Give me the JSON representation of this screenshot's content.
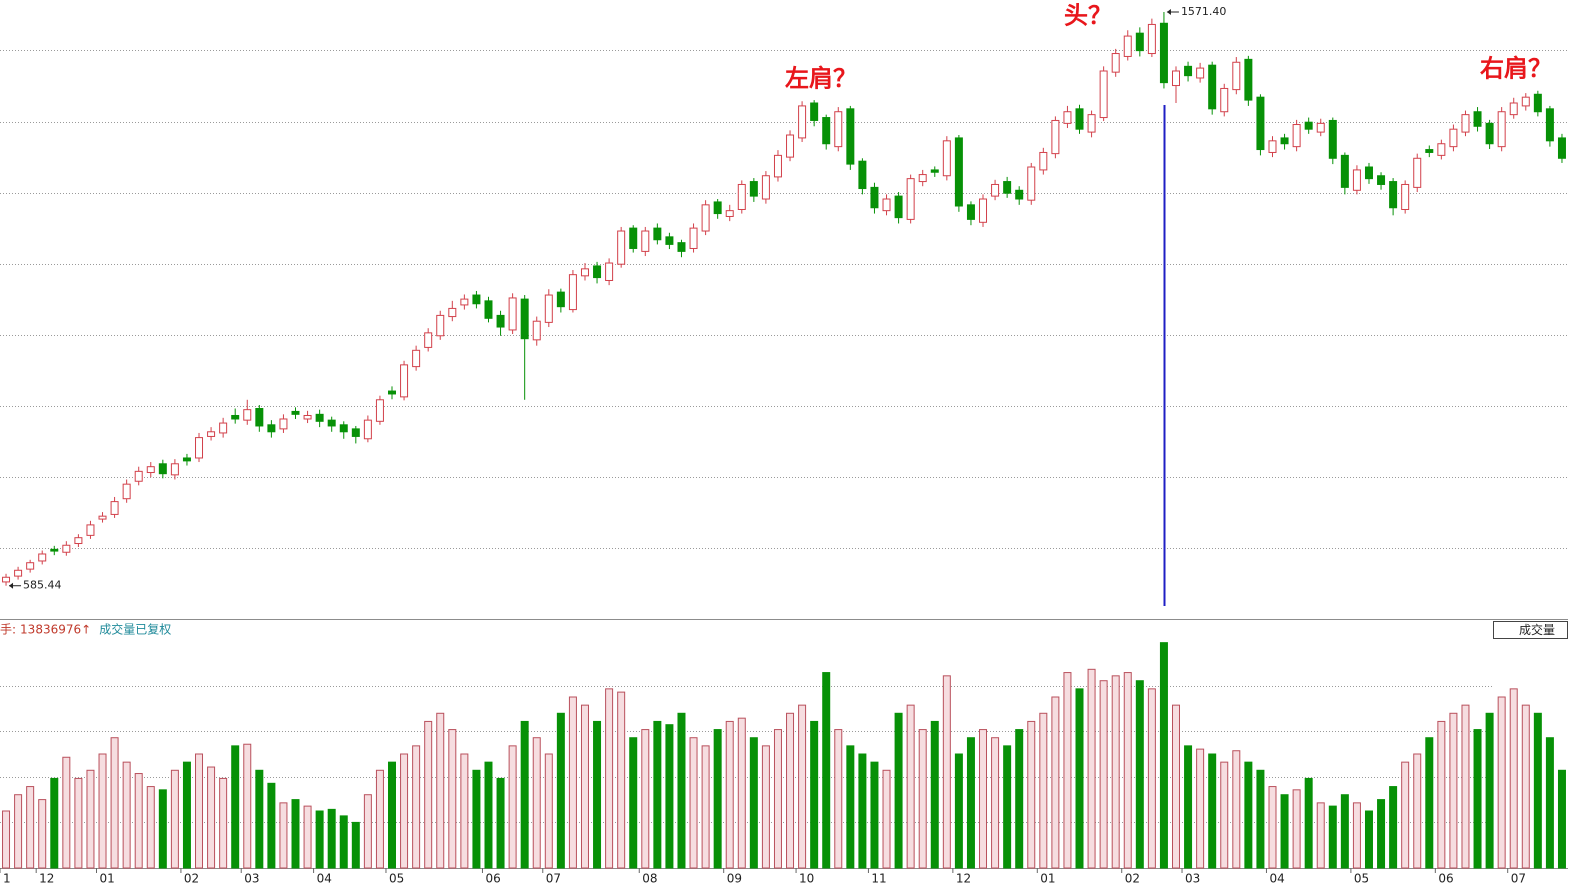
{
  "chart_data": {
    "type": "candlestick",
    "categories": [
      "1",
      null,
      null,
      "12",
      null,
      null,
      null,
      null,
      "01",
      null,
      null,
      null,
      null,
      null,
      null,
      "02",
      null,
      null,
      null,
      null,
      "03",
      null,
      null,
      null,
      null,
      null,
      "04",
      null,
      null,
      null,
      null,
      null,
      "05",
      null,
      null,
      null,
      null,
      null,
      null,
      null,
      "06",
      null,
      null,
      null,
      null,
      "07",
      null,
      null,
      null,
      null,
      null,
      null,
      null,
      "08",
      null,
      null,
      null,
      null,
      null,
      null,
      "09",
      null,
      null,
      null,
      null,
      null,
      "10",
      null,
      null,
      null,
      null,
      null,
      "11",
      null,
      null,
      null,
      null,
      null,
      null,
      "12",
      null,
      null,
      null,
      null,
      null,
      null,
      "01",
      null,
      null,
      null,
      null,
      null,
      null,
      "02",
      null,
      null,
      null,
      null,
      "03",
      null,
      null,
      null,
      null,
      null,
      null,
      "04",
      null,
      null,
      null,
      null,
      null,
      null,
      "05",
      null,
      null,
      null,
      null,
      null,
      null,
      "06",
      null,
      null,
      null,
      null,
      null,
      "07",
      null,
      null,
      null,
      null
    ],
    "candles": {
      "open": [
        592,
        602,
        614,
        628,
        648,
        643,
        658,
        672,
        700,
        708,
        735,
        765,
        780,
        795,
        776,
        805,
        805,
        842,
        848,
        878,
        870,
        890,
        862,
        855,
        885,
        872,
        880,
        870,
        862,
        855,
        838,
        868,
        920,
        910,
        962,
        995,
        1015,
        1048,
        1068,
        1085,
        1075,
        1050,
        1025,
        1078,
        1008,
        1038,
        1090,
        1060,
        1118,
        1135,
        1110,
        1138,
        1200,
        1160,
        1200,
        1185,
        1175,
        1165,
        1195,
        1245,
        1220,
        1232,
        1280,
        1250,
        1288,
        1322,
        1355,
        1415,
        1390,
        1340,
        1405,
        1315,
        1270,
        1230,
        1255,
        1215,
        1280,
        1300,
        1290,
        1355,
        1240,
        1210,
        1255,
        1280,
        1265,
        1248,
        1300,
        1328,
        1380,
        1405,
        1365,
        1390,
        1468,
        1495,
        1535,
        1500,
        1552,
        1445,
        1478,
        1458,
        1480,
        1400,
        1438,
        1490,
        1425,
        1330,
        1355,
        1340,
        1382,
        1365,
        1385,
        1325,
        1265,
        1305,
        1290,
        1280,
        1232,
        1270,
        1335,
        1325,
        1340,
        1365,
        1400,
        1380,
        1340,
        1395,
        1410,
        1430,
        1405,
        1355
      ],
      "high": [
        606,
        618,
        630,
        646,
        654,
        662,
        674,
        697,
        712,
        738,
        768,
        790,
        798,
        802,
        803,
        812,
        848,
        858,
        874,
        890,
        905,
        896,
        870,
        880,
        892,
        886,
        888,
        876,
        868,
        860,
        878,
        912,
        928,
        972,
        998,
        1028,
        1058,
        1075,
        1086,
        1092,
        1082,
        1058,
        1088,
        1085,
        1048,
        1095,
        1096,
        1128,
        1140,
        1142,
        1148,
        1202,
        1205,
        1202,
        1208,
        1192,
        1180,
        1208,
        1248,
        1250,
        1240,
        1282,
        1286,
        1298,
        1334,
        1368,
        1418,
        1420,
        1395,
        1408,
        1410,
        1320,
        1278,
        1258,
        1262,
        1292,
        1300,
        1306,
        1358,
        1360,
        1246,
        1258,
        1283,
        1288,
        1272,
        1312,
        1338,
        1392,
        1410,
        1412,
        1402,
        1478,
        1508,
        1540,
        1545,
        1560,
        1571.4,
        1478,
        1486,
        1484,
        1486,
        1448,
        1494,
        1496,
        1430,
        1358,
        1362,
        1386,
        1390,
        1388,
        1390,
        1330,
        1308,
        1312,
        1296,
        1286,
        1282,
        1328,
        1342,
        1352,
        1378,
        1402,
        1408,
        1386,
        1408,
        1424,
        1432,
        1436,
        1410,
        1362
      ],
      "low": [
        585.44,
        596,
        608,
        622,
        638,
        637,
        652,
        666,
        694,
        702,
        728,
        758,
        772,
        770,
        768,
        792,
        798,
        835,
        840,
        864,
        862,
        850,
        840,
        848,
        872,
        865,
        858,
        850,
        838,
        830,
        832,
        862,
        906,
        904,
        955,
        988,
        1008,
        1040,
        1060,
        1062,
        1038,
        1015,
        1018,
        905,
        998,
        1030,
        1055,
        1055,
        1110,
        1105,
        1102,
        1132,
        1158,
        1152,
        1172,
        1164,
        1150,
        1158,
        1188,
        1216,
        1212,
        1225,
        1245,
        1242,
        1280,
        1315,
        1348,
        1375,
        1335,
        1332,
        1300,
        1258,
        1225,
        1222,
        1208,
        1208,
        1272,
        1288,
        1282,
        1228,
        1205,
        1202,
        1248,
        1252,
        1240,
        1240,
        1292,
        1320,
        1372,
        1362,
        1356,
        1384,
        1460,
        1488,
        1495,
        1494,
        1440,
        1415,
        1452,
        1450,
        1395,
        1392,
        1430,
        1410,
        1325,
        1322,
        1335,
        1332,
        1362,
        1358,
        1310,
        1258,
        1258,
        1276,
        1266,
        1222,
        1225,
        1262,
        1322,
        1318,
        1332,
        1358,
        1366,
        1336,
        1332,
        1388,
        1402,
        1392,
        1340,
        1312
      ],
      "close": [
        600,
        612,
        625,
        640,
        645,
        655,
        668,
        690,
        705,
        730,
        760,
        782,
        790,
        778,
        795,
        800,
        840,
        850,
        865,
        872,
        888,
        860,
        850,
        872,
        880,
        878,
        868,
        860,
        850,
        842,
        870,
        905,
        915,
        965,
        990,
        1020,
        1050,
        1062,
        1078,
        1070,
        1045,
        1030,
        1080,
        1010,
        1040,
        1085,
        1065,
        1120,
        1130,
        1115,
        1140,
        1195,
        1165,
        1195,
        1180,
        1172,
        1160,
        1200,
        1240,
        1225,
        1230,
        1275,
        1255,
        1290,
        1325,
        1360,
        1410,
        1385,
        1345,
        1400,
        1310,
        1268,
        1235,
        1250,
        1218,
        1285,
        1292,
        1296,
        1350,
        1238,
        1215,
        1250,
        1275,
        1260,
        1250,
        1305,
        1330,
        1385,
        1400,
        1370,
        1395,
        1470,
        1500,
        1530,
        1505,
        1550,
        1450,
        1470,
        1462,
        1475,
        1405,
        1440,
        1485,
        1420,
        1335,
        1350,
        1345,
        1378,
        1370,
        1380,
        1320,
        1270,
        1300,
        1285,
        1275,
        1235,
        1275,
        1320,
        1330,
        1345,
        1370,
        1395,
        1375,
        1345,
        1400,
        1415,
        1425,
        1400,
        1350,
        1320
      ]
    },
    "ylim": [
      530,
      1592
    ],
    "yticks": [
      650,
      772,
      894,
      1016,
      1138,
      1260,
      1382,
      1506
    ],
    "grid": true,
    "colors": {
      "up": "#d2404a",
      "down": "#079107",
      "cursor": "#1f1fc4"
    },
    "max_label": "1571.40",
    "min_label": "585.44",
    "cursor_index": 96,
    "annotations": [
      "左肩？",
      "头？",
      "右肩？"
    ],
    "volume": {
      "values": [
        3500000,
        4500000,
        5000000,
        4200000,
        5500000,
        6800000,
        5500000,
        6000000,
        7000000,
        8000000,
        6500000,
        5800000,
        5000000,
        4800000,
        6000000,
        6500000,
        7000000,
        6200000,
        5500000,
        7500000,
        7600000,
        6000000,
        5200000,
        4000000,
        4200000,
        3800000,
        3500000,
        3600000,
        3200000,
        2800000,
        4500000,
        6000000,
        6500000,
        7000000,
        7500000,
        9000000,
        9500000,
        8500000,
        7000000,
        6000000,
        6500000,
        5500000,
        7500000,
        9000000,
        8000000,
        7000000,
        9500000,
        10500000,
        10000000,
        9000000,
        11000000,
        10800000,
        8000000,
        8500000,
        9000000,
        8800000,
        9500000,
        8000000,
        7500000,
        8500000,
        9000000,
        9200000,
        8000000,
        7500000,
        8500000,
        9500000,
        10000000,
        9000000,
        12000000,
        8500000,
        7500000,
        7000000,
        6500000,
        6000000,
        9500000,
        10000000,
        8500000,
        9000000,
        11800000,
        7000000,
        8000000,
        8500000,
        8000000,
        7500000,
        8500000,
        9000000,
        9500000,
        10500000,
        12000000,
        11000000,
        12200000,
        11500000,
        11800000,
        12000000,
        11500000,
        11000000,
        13836976,
        10000000,
        7500000,
        7300000,
        7000000,
        6500000,
        7200000,
        6500000,
        6000000,
        5000000,
        4500000,
        4800000,
        5500000,
        4000000,
        3800000,
        4500000,
        4000000,
        3500000,
        4200000,
        5000000,
        6500000,
        7000000,
        8000000,
        9000000,
        9500000,
        10000000,
        8500000,
        9500000,
        10500000,
        11000000,
        10000000,
        9500000,
        8000000,
        6000000
      ],
      "ylim": [
        0,
        14000000
      ],
      "yticks": [
        2800000,
        5600000,
        8400000,
        11200000
      ],
      "readout_prefix": "手:",
      "readout_arrow": "↑",
      "note": "成交量已复权",
      "title": "成交量"
    }
  }
}
